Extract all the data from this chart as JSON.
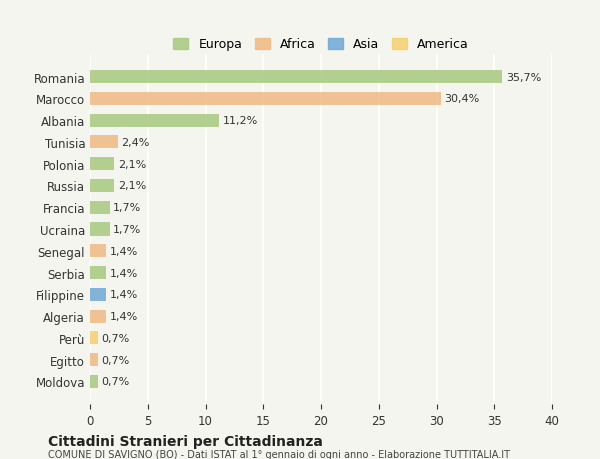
{
  "countries": [
    "Romania",
    "Marocco",
    "Albania",
    "Tunisia",
    "Polonia",
    "Russia",
    "Francia",
    "Ucraina",
    "Senegal",
    "Serbia",
    "Filippine",
    "Algeria",
    "Perù",
    "Egitto",
    "Moldova"
  ],
  "values": [
    35.7,
    30.4,
    11.2,
    2.4,
    2.1,
    2.1,
    1.7,
    1.7,
    1.4,
    1.4,
    1.4,
    1.4,
    0.7,
    0.7,
    0.7
  ],
  "labels": [
    "35,7%",
    "30,4%",
    "11,2%",
    "2,4%",
    "2,1%",
    "2,1%",
    "1,7%",
    "1,7%",
    "1,4%",
    "1,4%",
    "1,4%",
    "1,4%",
    "0,7%",
    "0,7%",
    "0,7%"
  ],
  "continents": [
    "Europa",
    "Africa",
    "Europa",
    "Africa",
    "Europa",
    "Europa",
    "Europa",
    "Europa",
    "Africa",
    "Europa",
    "Asia",
    "Africa",
    "America",
    "Africa",
    "Europa"
  ],
  "continent_colors": {
    "Europa": "#a8c97f",
    "Africa": "#f0b983",
    "Asia": "#6fa8d6",
    "America": "#f5d06e"
  },
  "legend_order": [
    "Europa",
    "Africa",
    "Asia",
    "America"
  ],
  "bg_color": "#f5f5f0",
  "title": "Cittadini Stranieri per Cittadinanza",
  "subtitle": "COMUNE DI SAVIGNO (BO) - Dati ISTAT al 1° gennaio di ogni anno - Elaborazione TUTTITALIA.IT",
  "xlim": [
    0,
    40
  ],
  "xticks": [
    0,
    5,
    10,
    15,
    20,
    25,
    30,
    35,
    40
  ]
}
